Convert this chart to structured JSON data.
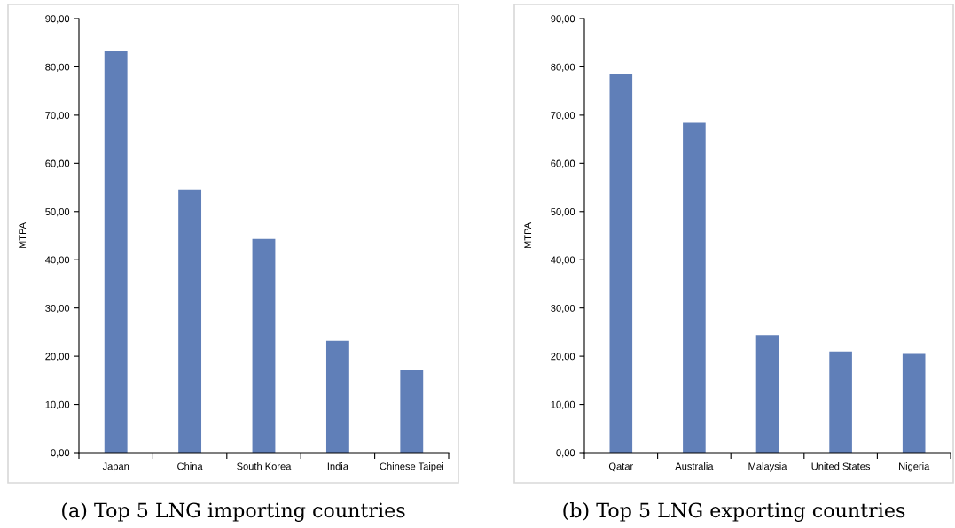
{
  "chart_data": [
    {
      "type": "bar",
      "title": "(a) Top 5 LNG importing countries",
      "ylabel": "MTPA",
      "categories": [
        "Japan",
        "China",
        "South Korea",
        "India",
        "Chinese Taipei"
      ],
      "values": [
        83.2,
        54.6,
        44.3,
        23.2,
        17.1
      ],
      "color": "#607fb8",
      "ylim": [
        0,
        90
      ],
      "yticks": [
        {
          "value": 0,
          "label": "0,00"
        },
        {
          "value": 10,
          "label": "10,00"
        },
        {
          "value": 20,
          "label": "20,00"
        },
        {
          "value": 30,
          "label": "30,00"
        },
        {
          "value": 40,
          "label": "40,00"
        },
        {
          "value": 50,
          "label": "50,00"
        },
        {
          "value": 60,
          "label": "60,00"
        },
        {
          "value": 70,
          "label": "70,00"
        },
        {
          "value": 80,
          "label": "80,00"
        },
        {
          "value": 90,
          "label": "90,00"
        }
      ],
      "grid": false
    },
    {
      "type": "bar",
      "title": "(b) Top 5 LNG exporting countries",
      "ylabel": "MTPA",
      "categories": [
        "Qatar",
        "Australia",
        "Malaysia",
        "United States",
        "Nigeria"
      ],
      "values": [
        78.6,
        68.4,
        24.4,
        21.0,
        20.5
      ],
      "color": "#607fb8",
      "ylim": [
        0,
        90
      ],
      "yticks": [
        {
          "value": 0,
          "label": "0,00"
        },
        {
          "value": 10,
          "label": "10,00"
        },
        {
          "value": 20,
          "label": "20,00"
        },
        {
          "value": 30,
          "label": "30,00"
        },
        {
          "value": 40,
          "label": "40,00"
        },
        {
          "value": 50,
          "label": "50,00"
        },
        {
          "value": 60,
          "label": "60,00"
        },
        {
          "value": 70,
          "label": "70,00"
        },
        {
          "value": 80,
          "label": "80,00"
        },
        {
          "value": 90,
          "label": "90,00"
        }
      ],
      "grid": false
    }
  ]
}
